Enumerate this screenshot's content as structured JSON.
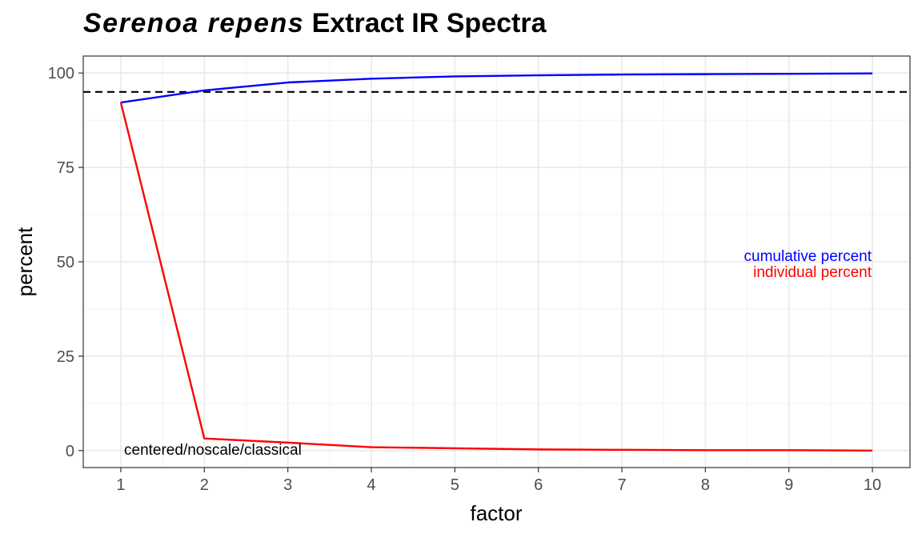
{
  "chart_data": {
    "type": "line",
    "title": {
      "italic_part": "Serenoa repens",
      "rest": " Extract IR Spectra"
    },
    "xlabel": "factor",
    "ylabel": "percent",
    "x": [
      1,
      2,
      3,
      4,
      5,
      6,
      7,
      8,
      9,
      10
    ],
    "xlim": [
      0.55,
      10.45
    ],
    "ylim": [
      -4.5,
      104.5
    ],
    "x_ticks": [
      "1",
      "2",
      "3",
      "4",
      "5",
      "6",
      "7",
      "8",
      "9",
      "10"
    ],
    "y_ticks": [
      "0",
      "25",
      "50",
      "75",
      "100"
    ],
    "grid": true,
    "series": [
      {
        "name": "cumulative percent",
        "color": "#0000ff",
        "values": [
          92.2,
          95.4,
          97.5,
          98.5,
          99.1,
          99.4,
          99.6,
          99.7,
          99.8,
          99.9
        ]
      },
      {
        "name": "individual percent",
        "color": "#ff0000",
        "values": [
          92.2,
          3.2,
          2.1,
          0.9,
          0.6,
          0.3,
          0.2,
          0.1,
          0.1,
          0.0
        ]
      }
    ],
    "reference_line": {
      "y": 95,
      "style": "dashed",
      "color": "#000000"
    },
    "annotations": [
      {
        "text": "cumulative percent",
        "color": "#0000ff"
      },
      {
        "text": "individual percent",
        "color": "#ff0000"
      },
      {
        "text": "centered/noscale/classical",
        "color": "#000000"
      }
    ]
  }
}
